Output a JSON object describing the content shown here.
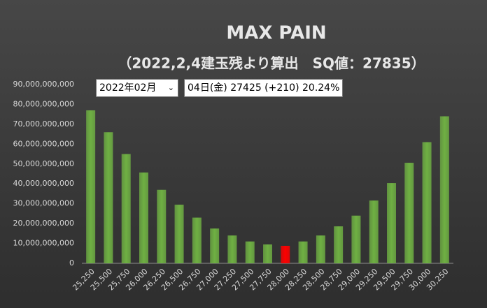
{
  "chart_data": {
    "type": "bar",
    "title": "MAX PAIN",
    "subtitle": "（2022,2,4建玉残より算出　SQ値：27835）",
    "categories": [
      "25,250",
      "25,500",
      "25,750",
      "26,000",
      "26,250",
      "26,500",
      "26,750",
      "27,000",
      "27,250",
      "27,500",
      "27,750",
      "28,000",
      "28,250",
      "28,500",
      "28,750",
      "29,000",
      "29,250",
      "29,500",
      "29,750",
      "30,000",
      "30,250"
    ],
    "values": [
      77000000000,
      66000000000,
      55000000000,
      45700000000,
      37000000000,
      29500000000,
      23000000000,
      17500000000,
      14000000000,
      11000000000,
      9500000000,
      8800000000,
      11000000000,
      14000000000,
      18600000000,
      24000000000,
      31600000000,
      40400000000,
      50600000000,
      61000000000,
      74000000000
    ],
    "colors": [
      "#6fb043",
      "#6fb043",
      "#6fb043",
      "#6fb043",
      "#6fb043",
      "#6fb043",
      "#6fb043",
      "#6fb043",
      "#6fb043",
      "#6fb043",
      "#6fb043",
      "#ff0000",
      "#6fb043",
      "#6fb043",
      "#6fb043",
      "#6fb043",
      "#6fb043",
      "#6fb043",
      "#6fb043",
      "#6fb043",
      "#6fb043"
    ],
    "ylim": [
      0,
      90000000000
    ],
    "yticks": [
      0,
      {
        "value": 10000000000,
        "label": "10,000,000,000"
      },
      {
        "value": 20000000000,
        "label": "20,000,000,000"
      },
      {
        "value": 30000000000,
        "label": "30,000,000,000"
      },
      {
        "value": 40000000000,
        "label": "40,000,000,000"
      },
      {
        "value": 50000000000,
        "label": "50,000,000,000"
      },
      {
        "value": 60000000000,
        "label": "60,000,000,000"
      },
      {
        "value": 70000000000,
        "label": "70,000,000,000"
      },
      {
        "value": 80000000000,
        "label": "80,000,000,000"
      },
      {
        "value": 90000000000,
        "label": "90,000,000,000"
      }
    ],
    "grid": false
  },
  "controls": {
    "month": "2022年02月",
    "info": "04日(金) 27425 (+210) 20.24%"
  }
}
